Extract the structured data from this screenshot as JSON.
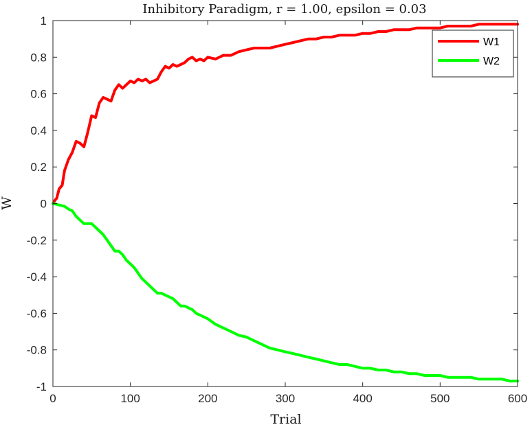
{
  "chart_data": {
    "type": "line",
    "title": "Inhibitory Paradigm, r = 1.00, epsilon = 0.03",
    "xlabel": "Trial",
    "ylabel": "W",
    "xlim": [
      0,
      600
    ],
    "ylim": [
      -1,
      1
    ],
    "xticks": [
      0,
      100,
      200,
      300,
      400,
      500,
      600
    ],
    "yticks": [
      1,
      0.8,
      0.6,
      0.4,
      0.2,
      0,
      -0.2,
      -0.4,
      -0.6,
      -0.8,
      -1
    ],
    "xtick_labels": [
      "0",
      "100",
      "200",
      "300",
      "400",
      "500",
      "600"
    ],
    "ytick_labels": [
      "1",
      "0.8",
      "0.6",
      "0.4",
      "0.2",
      "0",
      "-0.2",
      "-0.4",
      "-0.6",
      "-0.8",
      "-1"
    ],
    "grid": false,
    "legend_position": "top-right",
    "series": [
      {
        "name": "W1",
        "color": "#ff0000",
        "x": [
          0,
          3,
          5,
          8,
          12,
          15,
          20,
          25,
          30,
          35,
          40,
          45,
          50,
          55,
          60,
          65,
          70,
          75,
          80,
          85,
          90,
          95,
          100,
          105,
          110,
          115,
          120,
          125,
          130,
          135,
          140,
          145,
          150,
          155,
          160,
          165,
          170,
          175,
          180,
          185,
          190,
          195,
          200,
          210,
          220,
          230,
          240,
          250,
          260,
          270,
          280,
          290,
          300,
          310,
          320,
          330,
          340,
          350,
          360,
          370,
          380,
          390,
          400,
          410,
          420,
          430,
          440,
          450,
          460,
          470,
          480,
          490,
          500,
          510,
          520,
          530,
          540,
          550,
          560,
          570,
          580,
          590,
          600
        ],
        "y": [
          0.0,
          0.02,
          0.03,
          0.08,
          0.1,
          0.18,
          0.24,
          0.28,
          0.34,
          0.33,
          0.31,
          0.39,
          0.48,
          0.47,
          0.55,
          0.58,
          0.57,
          0.56,
          0.62,
          0.65,
          0.63,
          0.65,
          0.67,
          0.66,
          0.68,
          0.67,
          0.68,
          0.66,
          0.67,
          0.68,
          0.72,
          0.75,
          0.74,
          0.76,
          0.75,
          0.76,
          0.77,
          0.79,
          0.8,
          0.78,
          0.79,
          0.78,
          0.8,
          0.79,
          0.81,
          0.81,
          0.83,
          0.84,
          0.85,
          0.85,
          0.85,
          0.86,
          0.87,
          0.88,
          0.89,
          0.9,
          0.9,
          0.91,
          0.91,
          0.92,
          0.92,
          0.92,
          0.93,
          0.93,
          0.94,
          0.94,
          0.95,
          0.95,
          0.95,
          0.96,
          0.96,
          0.96,
          0.96,
          0.97,
          0.97,
          0.97,
          0.97,
          0.98,
          0.98,
          0.98,
          0.98,
          0.98,
          0.98
        ]
      },
      {
        "name": "W2",
        "color": "#00ff00",
        "x": [
          0,
          5,
          10,
          15,
          20,
          25,
          30,
          35,
          40,
          45,
          50,
          55,
          60,
          65,
          70,
          75,
          80,
          85,
          90,
          95,
          100,
          105,
          110,
          115,
          120,
          125,
          130,
          135,
          140,
          145,
          150,
          155,
          160,
          165,
          170,
          175,
          180,
          185,
          190,
          195,
          200,
          210,
          220,
          230,
          240,
          250,
          260,
          270,
          280,
          290,
          300,
          310,
          320,
          330,
          340,
          350,
          360,
          370,
          380,
          390,
          400,
          410,
          420,
          430,
          440,
          450,
          460,
          470,
          480,
          490,
          500,
          510,
          520,
          530,
          540,
          550,
          560,
          570,
          580,
          590,
          600
        ],
        "y": [
          0.0,
          -0.005,
          -0.01,
          -0.015,
          -0.03,
          -0.04,
          -0.07,
          -0.09,
          -0.11,
          -0.11,
          -0.11,
          -0.13,
          -0.15,
          -0.17,
          -0.2,
          -0.23,
          -0.26,
          -0.26,
          -0.28,
          -0.31,
          -0.33,
          -0.35,
          -0.38,
          -0.41,
          -0.43,
          -0.45,
          -0.47,
          -0.49,
          -0.49,
          -0.5,
          -0.51,
          -0.52,
          -0.54,
          -0.56,
          -0.56,
          -0.57,
          -0.58,
          -0.6,
          -0.61,
          -0.62,
          -0.63,
          -0.66,
          -0.68,
          -0.7,
          -0.72,
          -0.73,
          -0.75,
          -0.77,
          -0.79,
          -0.8,
          -0.81,
          -0.82,
          -0.83,
          -0.84,
          -0.85,
          -0.86,
          -0.87,
          -0.88,
          -0.88,
          -0.89,
          -0.9,
          -0.9,
          -0.91,
          -0.91,
          -0.92,
          -0.92,
          -0.93,
          -0.93,
          -0.94,
          -0.94,
          -0.94,
          -0.95,
          -0.95,
          -0.95,
          -0.95,
          -0.96,
          -0.96,
          -0.96,
          -0.96,
          -0.97,
          -0.97
        ]
      }
    ]
  }
}
